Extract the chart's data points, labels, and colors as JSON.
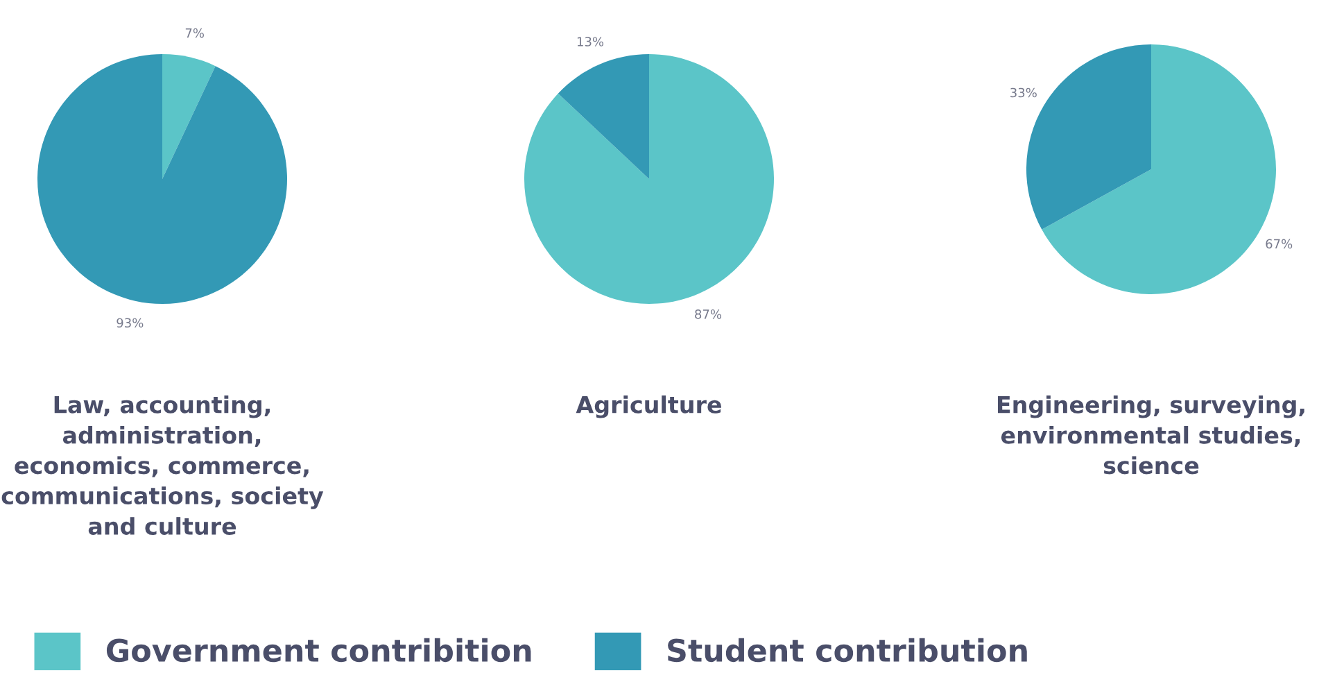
{
  "chart_data": [
    {
      "type": "pie",
      "title": "Law, accounting, administration, economics, commerce, communications, society and culture",
      "categories": [
        "Government contribition",
        "Student contribution"
      ],
      "values": [
        7,
        93
      ],
      "colors": [
        "#5bc5c8",
        "#3399b5"
      ],
      "value_labels": [
        "7%",
        "93%"
      ],
      "legend": "bottom"
    },
    {
      "type": "pie",
      "title": "Agriculture",
      "categories": [
        null,
        null
      ],
      "values": [
        87,
        13
      ],
      "colors": [
        "#5bc5c8",
        "#3399b5"
      ],
      "value_labels": [
        "87%",
        "13%"
      ]
    },
    {
      "type": "pie",
      "title": "Engineering, surveying, environmental studies, science",
      "categories": [
        null,
        null
      ],
      "values": [
        67,
        33
      ],
      "colors": [
        "#5bc5c8",
        "#3399b5"
      ],
      "value_labels": [
        "67%",
        "33%"
      ]
    }
  ]
}
